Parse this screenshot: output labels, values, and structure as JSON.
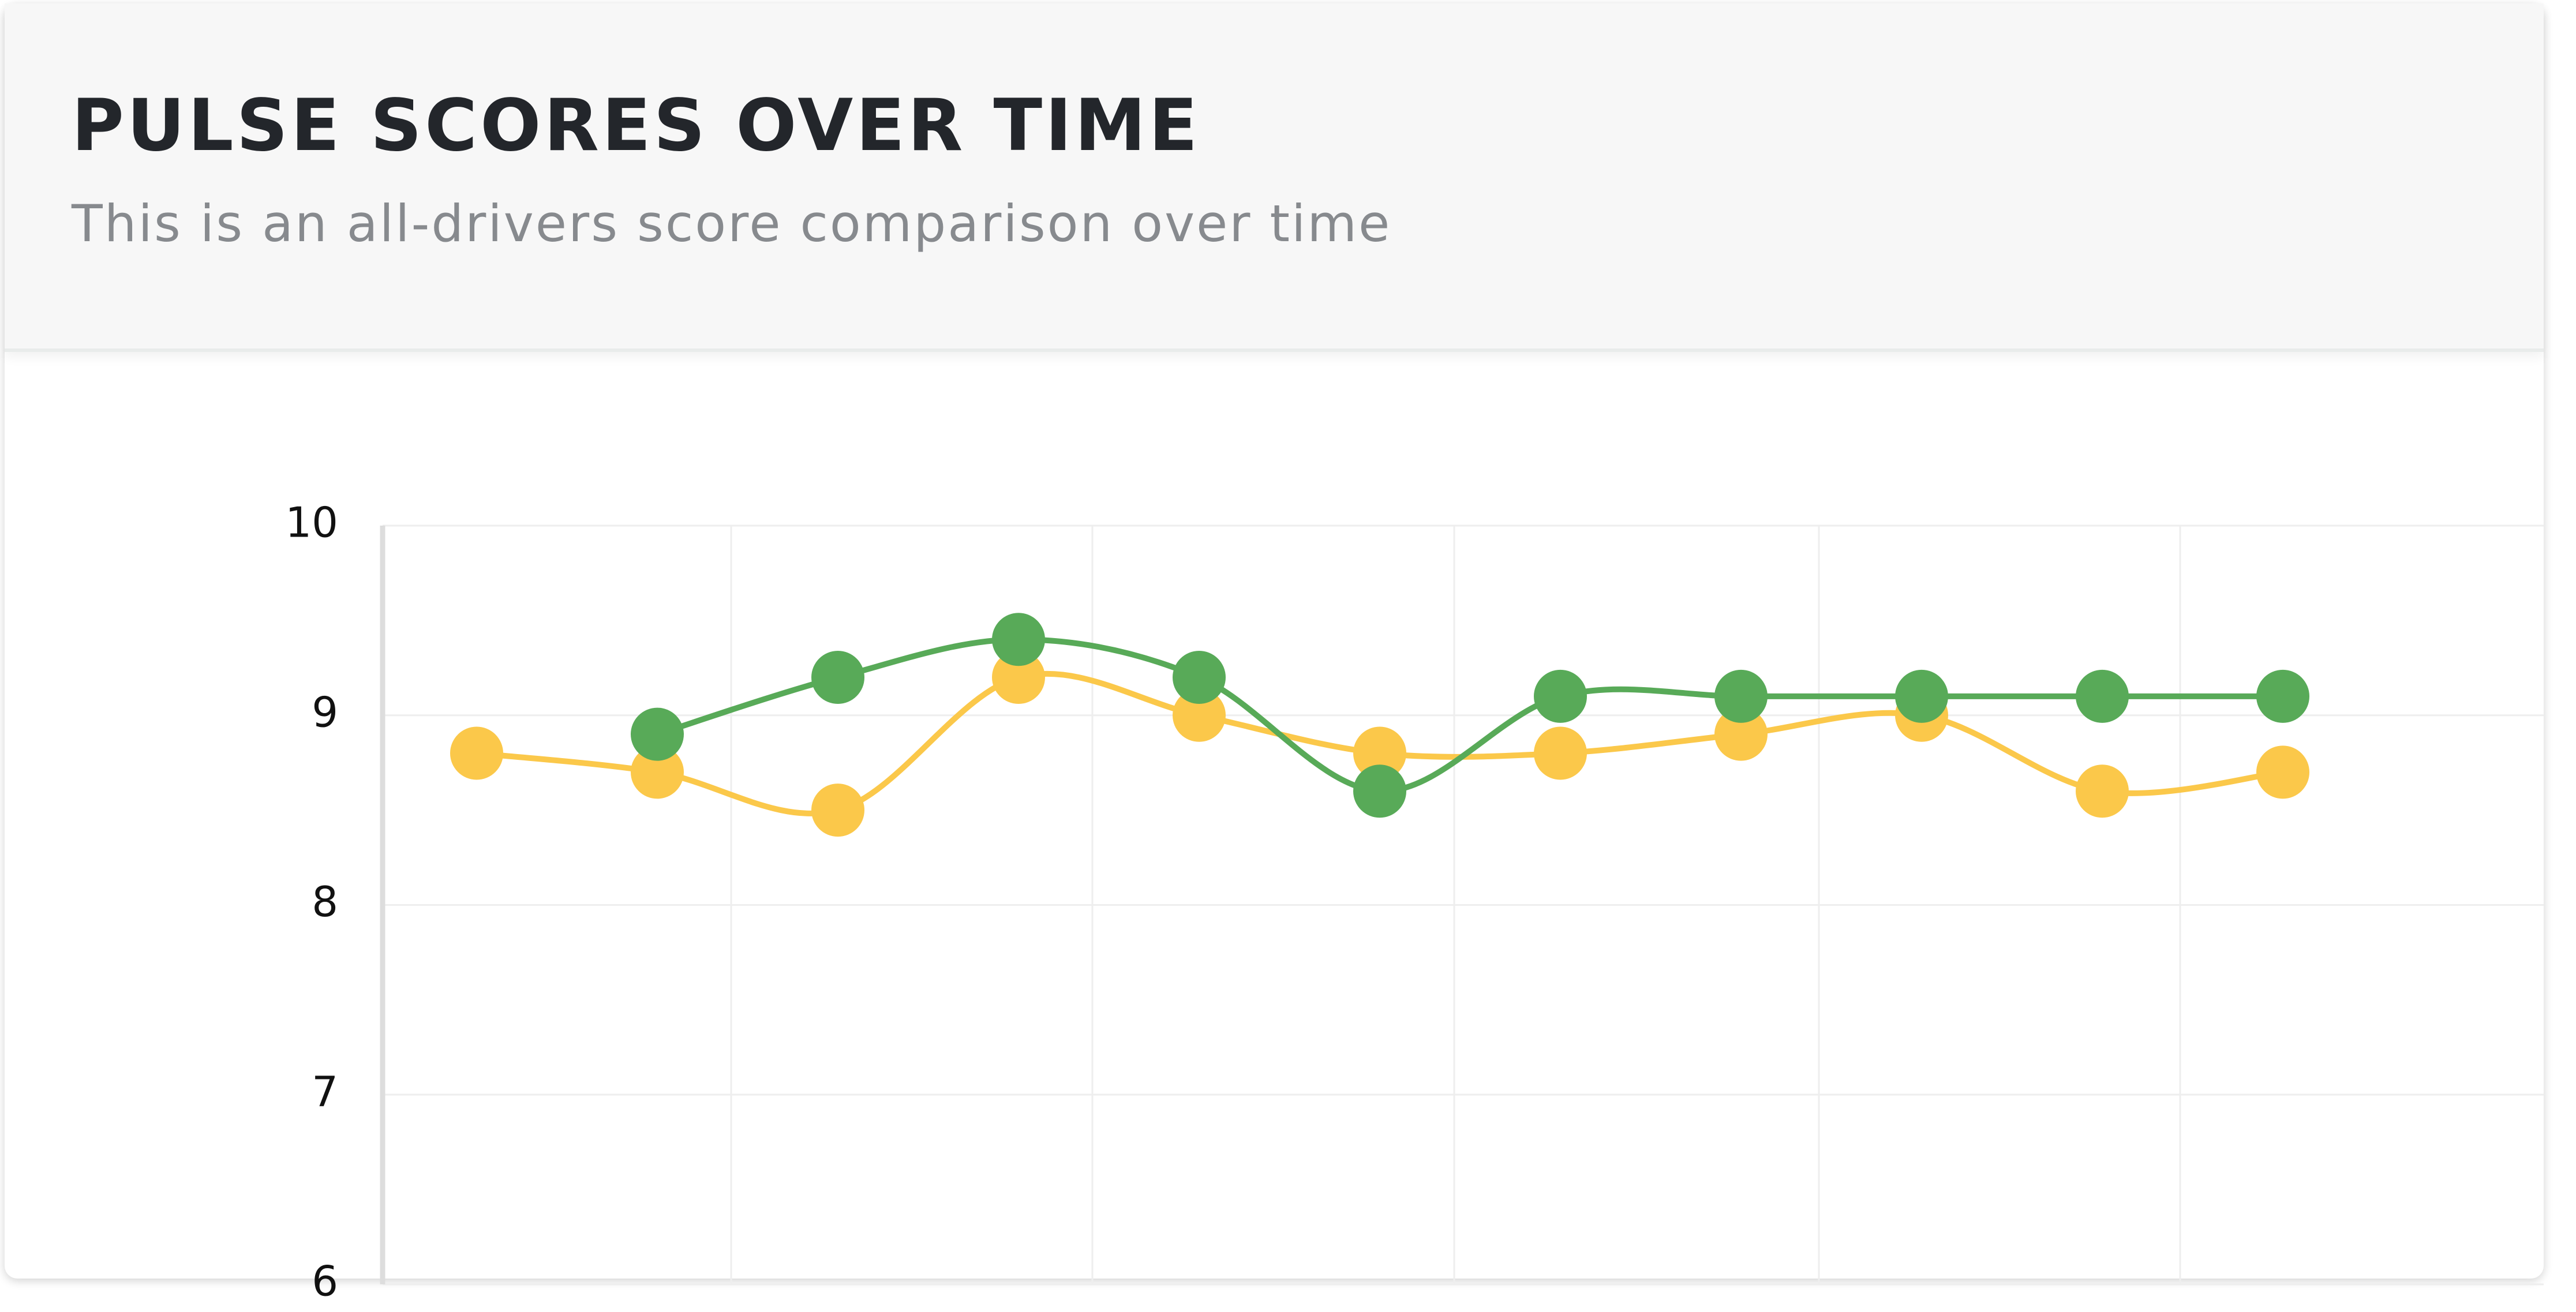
{
  "chart_data": {
    "type": "line",
    "title": "PULSE SCORES OVER TIME",
    "subtitle": "This is an all-drivers score comparison over time",
    "categories": [
      null,
      null,
      null,
      null,
      null,
      null,
      null,
      null,
      null,
      null,
      null
    ],
    "series": [
      {
        "color": "#fbc84a",
        "values": [
          8.8,
          8.7,
          8.5,
          9.2,
          9.0,
          8.8,
          8.8,
          8.9,
          9.0,
          8.6,
          8.7
        ]
      },
      {
        "color": "#58aa58",
        "values": [
          null,
          8.9,
          9.2,
          9.4,
          9.2,
          8.6,
          9.1,
          9.1,
          9.1,
          9.1,
          9.1
        ]
      }
    ],
    "ylim": [
      6,
      10
    ],
    "yticks": [
      10,
      9,
      8,
      7,
      6
    ],
    "grid": true
  }
}
